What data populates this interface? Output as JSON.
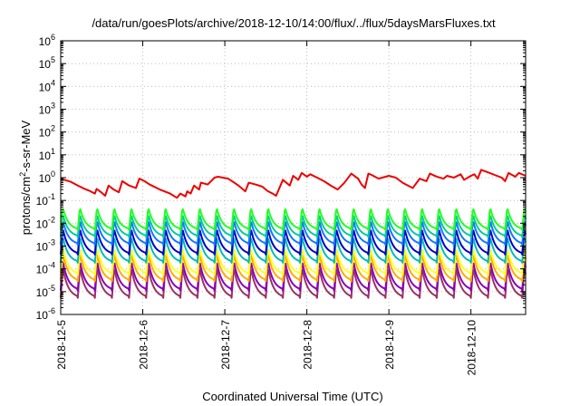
{
  "chart_data": {
    "type": "line",
    "title": "/data/run/goesPlots/archive/2018-12-10/14:00/flux/../flux/5daysMarsFluxes.txt",
    "xlabel": "Coordinated Universal Time (UTC)",
    "ylabel": {
      "base": "protons/cm",
      "sup": "2",
      "rest": "-s-sr-MeV"
    },
    "x_scale": "time",
    "x_range": [
      "2018-12-05T00:00",
      "2018-12-10T16:00"
    ],
    "x_ticks": [
      "2018-12-5",
      "2018-12-6",
      "2018-12-7",
      "2018-12-8",
      "2018-12-9",
      "2018-12-10"
    ],
    "y_scale": "log",
    "y_range": [
      1e-06,
      1000000.0
    ],
    "y_ticks": [
      {
        "base": "10",
        "exp": "-6"
      },
      {
        "base": "10",
        "exp": "-5"
      },
      {
        "base": "10",
        "exp": "-4"
      },
      {
        "base": "10",
        "exp": "-3"
      },
      {
        "base": "10",
        "exp": "-2"
      },
      {
        "base": "10",
        "exp": "-1"
      },
      {
        "base": "10",
        "exp": "0"
      },
      {
        "base": "10",
        "exp": "1"
      },
      {
        "base": "10",
        "exp": "2"
      },
      {
        "base": "10",
        "exp": "3"
      },
      {
        "base": "10",
        "exp": "4"
      },
      {
        "base": "10",
        "exp": "5"
      },
      {
        "base": "10",
        "exp": "6"
      }
    ],
    "grid": true,
    "legend": "none",
    "series": [
      {
        "color": "#ee0000",
        "x": [
          "2018-12-05T00:00",
          "2018-12-05T03:00",
          "2018-12-05T05:00",
          "2018-12-05T07:00",
          "2018-12-05T08:30",
          "2018-12-05T10:00",
          "2018-12-05T10:30",
          "2018-12-05T11:30",
          "2018-12-05T13:00",
          "2018-12-05T14:00",
          "2018-12-05T15:30",
          "2018-12-05T17:00",
          "2018-12-05T18:00",
          "2018-12-05T20:00",
          "2018-12-05T22:00",
          "2018-12-05T23:00",
          "2018-12-06T00:30",
          "2018-12-06T02:00",
          "2018-12-06T05:00",
          "2018-12-06T08:00",
          "2018-12-06T10:00",
          "2018-12-06T11:00",
          "2018-12-06T12:30",
          "2018-12-06T13:00",
          "2018-12-06T14:00",
          "2018-12-06T15:00",
          "2018-12-06T16:30",
          "2018-12-06T17:00",
          "2018-12-06T19:00",
          "2018-12-06T21:00",
          "2018-12-06T22:00",
          "2018-12-07T01:00",
          "2018-12-07T04:00",
          "2018-12-07T06:00",
          "2018-12-07T07:00",
          "2018-12-07T09:00",
          "2018-12-07T11:00",
          "2018-12-07T12:30",
          "2018-12-07T14:00",
          "2018-12-07T15:00",
          "2018-12-07T17:00",
          "2018-12-07T19:00",
          "2018-12-07T20:00",
          "2018-12-07T21:30",
          "2018-12-07T22:30",
          "2018-12-08T00:00",
          "2018-12-08T01:00",
          "2018-12-08T03:00",
          "2018-12-08T05:00",
          "2018-12-08T07:00",
          "2018-12-08T09:00",
          "2018-12-08T11:00",
          "2018-12-08T13:00",
          "2018-12-08T15:00",
          "2018-12-08T16:00",
          "2018-12-08T17:00",
          "2018-12-08T18:00",
          "2018-12-08T19:00",
          "2018-12-08T21:00",
          "2018-12-09T00:00",
          "2018-12-09T02:00",
          "2018-12-09T04:00",
          "2018-12-09T05:00",
          "2018-12-09T07:00",
          "2018-12-09T09:00",
          "2018-12-09T11:00",
          "2018-12-09T12:00",
          "2018-12-09T14:00",
          "2018-12-09T16:00",
          "2018-12-09T17:00",
          "2018-12-09T19:00",
          "2018-12-09T21:00",
          "2018-12-09T22:00",
          "2018-12-10T00:00",
          "2018-12-10T01:00",
          "2018-12-10T02:00",
          "2018-12-10T03:00",
          "2018-12-10T05:00",
          "2018-12-10T07:00",
          "2018-12-10T09:00",
          "2018-12-10T10:00",
          "2018-12-10T11:00",
          "2018-12-10T13:00",
          "2018-12-10T14:00",
          "2018-12-10T16:00"
        ],
        "y": [
          0.9,
          0.65,
          0.45,
          0.32,
          0.26,
          0.2,
          0.32,
          0.25,
          0.16,
          0.45,
          0.3,
          0.23,
          0.7,
          0.45,
          0.35,
          0.9,
          0.7,
          0.5,
          0.3,
          0.2,
          0.13,
          0.2,
          0.15,
          0.25,
          0.2,
          0.45,
          0.3,
          0.6,
          0.5,
          1.0,
          1.1,
          0.9,
          0.45,
          0.25,
          0.6,
          0.5,
          0.4,
          0.26,
          0.2,
          0.16,
          0.8,
          0.45,
          1.2,
          0.8,
          1.6,
          1.1,
          1.4,
          1.0,
          0.7,
          0.45,
          0.3,
          0.6,
          1.5,
          0.9,
          0.5,
          0.35,
          1.5,
          1.3,
          0.9,
          1.2,
          1.0,
          0.6,
          0.5,
          0.35,
          0.9,
          0.7,
          1.5,
          1.1,
          0.9,
          1.2,
          1.0,
          1.4,
          0.8,
          1.2,
          1.4,
          0.9,
          2.2,
          1.7,
          1.3,
          1.0,
          0.7,
          1.6,
          1.1,
          1.6,
          1.2
        ]
      },
      {
        "color": "#22ff22",
        "base": 0.016,
        "amp": 10,
        "period_h": 5
      },
      {
        "color": "#00cc99",
        "base": 0.008,
        "amp": 10,
        "period_h": 5
      },
      {
        "color": "#1177ff",
        "base": 0.004,
        "amp": 12,
        "period_h": 5
      },
      {
        "color": "#0000cc",
        "base": 0.0016,
        "amp": 14,
        "period_h": 5
      },
      {
        "color": "#00bbbb",
        "base": 0.0007,
        "amp": 14,
        "period_h": 5
      },
      {
        "color": "#ffff22",
        "base": 0.00022,
        "amp": 16,
        "period_h": 5
      },
      {
        "color": "#ffaa00",
        "base": 0.00012,
        "amp": 18,
        "period_h": 5
      },
      {
        "color": "#8800bb",
        "base": 5e-05,
        "amp": 20,
        "period_h": 5
      },
      {
        "color": "#993366",
        "base": 2.5e-05,
        "amp": 22,
        "period_h": 5
      }
    ]
  }
}
